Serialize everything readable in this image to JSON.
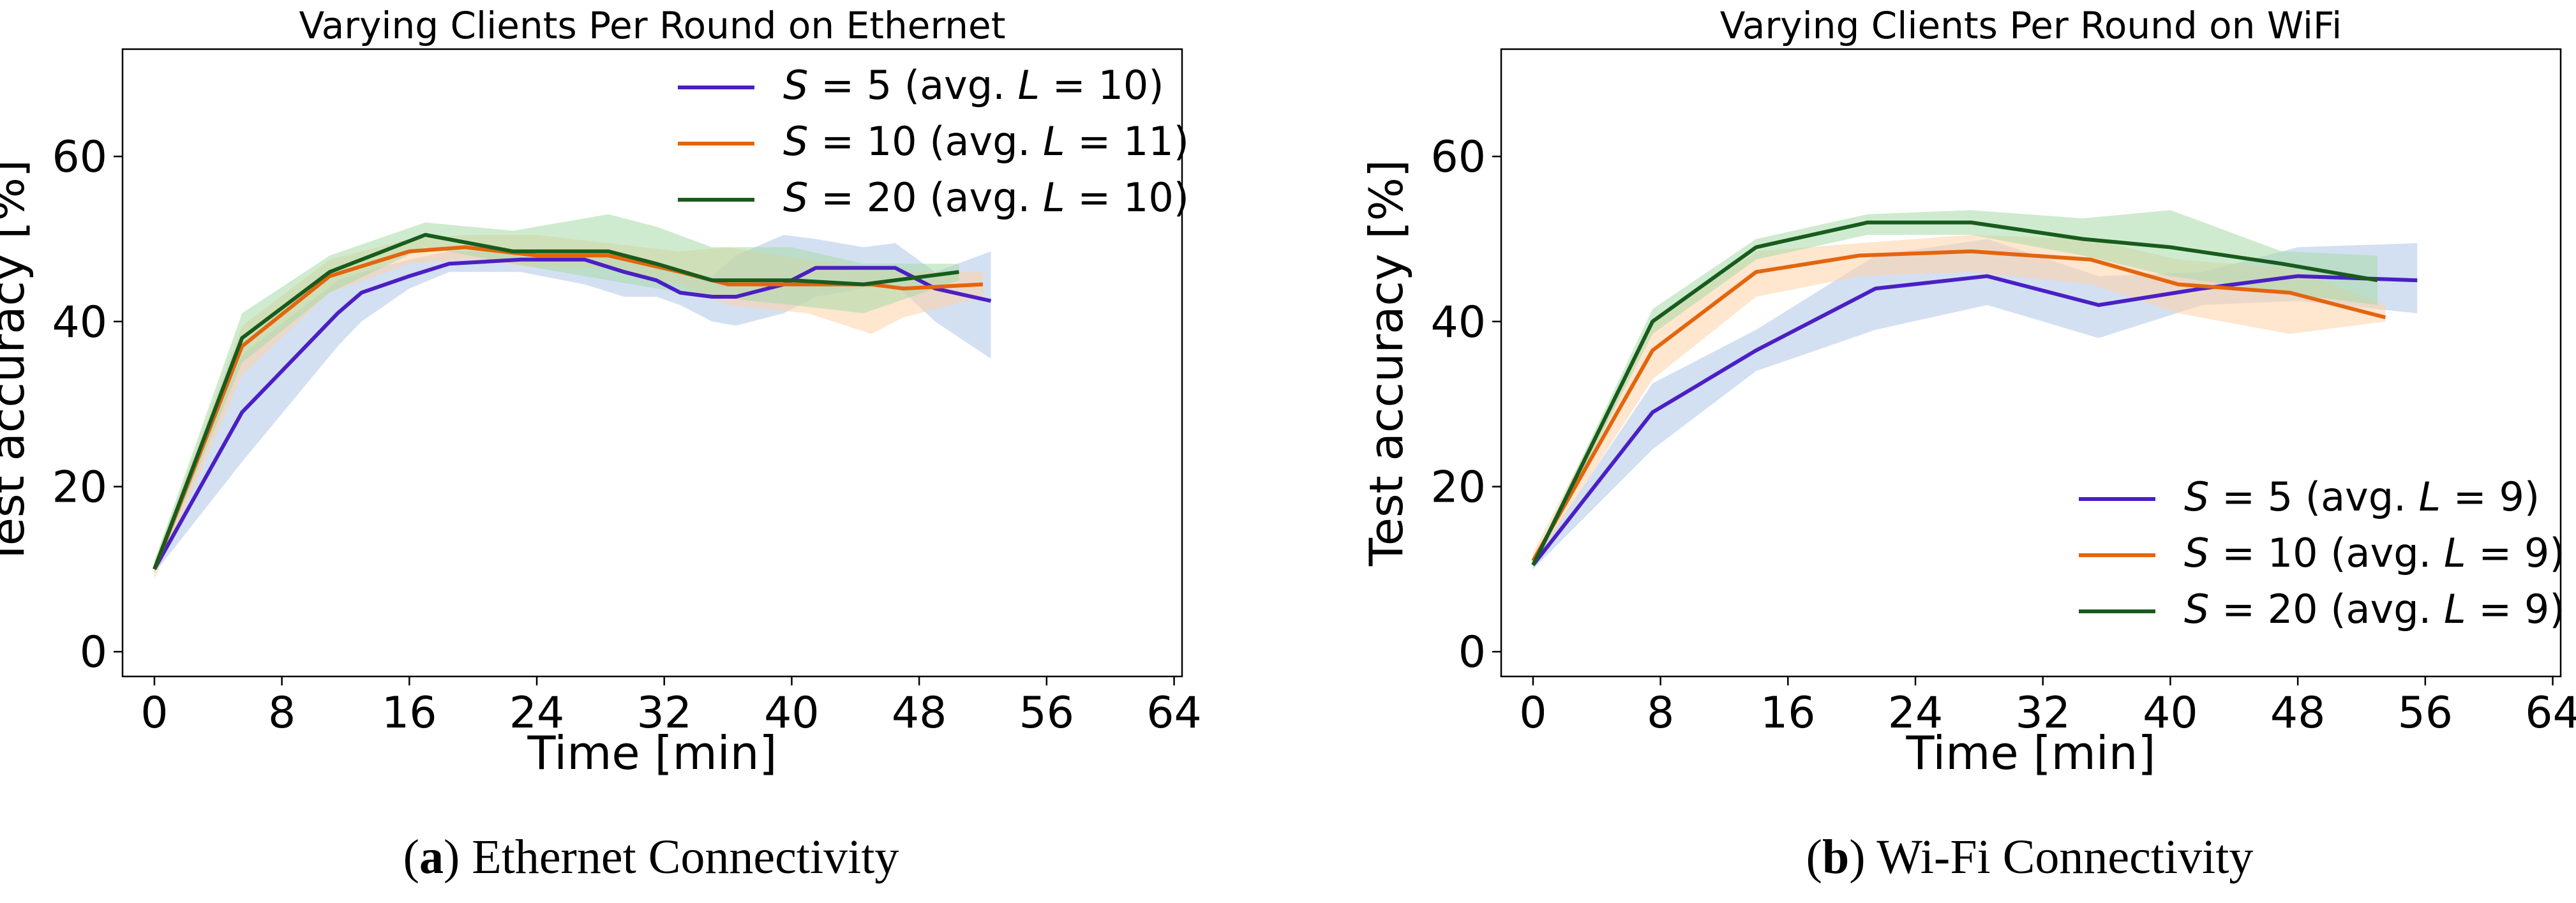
{
  "chart_data": [
    {
      "type": "line",
      "title": "Varying Clients Per Round on Ethernet",
      "xlabel": "Time [min]",
      "ylabel": "Test accuracy [%]",
      "xlim": [
        -2,
        64.5
      ],
      "ylim": [
        -3,
        73
      ],
      "xticks": [
        0,
        8,
        16,
        24,
        32,
        40,
        48,
        56,
        64
      ],
      "yticks": [
        0,
        20,
        40,
        60
      ],
      "legend_position": "top-right",
      "caption_label": "a",
      "caption_text": " Ethernet Connectivity",
      "series": [
        {
          "name": "S = 5 (avg. L = 10)",
          "name_parts": [
            "S",
            " = 5 (avg. ",
            "L",
            " = 10)"
          ],
          "color": "#4b1fc4",
          "band_color": "#aec7e8",
          "x": [
            0,
            5.5,
            11.5,
            13,
            16,
            18.5,
            23,
            27,
            29.5,
            31.5,
            33,
            35,
            36.5,
            39.5,
            41.5,
            44.5,
            46.5,
            49,
            52.5
          ],
          "y": [
            10,
            29,
            41,
            43.5,
            45.5,
            47,
            47.5,
            47.5,
            46,
            45,
            43.5,
            43,
            43,
            44.5,
            46.5,
            46.5,
            46.5,
            44,
            42.5
          ],
          "lower": [
            9.5,
            23,
            37,
            40,
            44,
            46,
            46,
            44.5,
            43,
            43,
            42,
            40,
            39.5,
            41,
            43,
            44,
            44.5,
            40,
            35.5
          ],
          "upper": [
            10.5,
            36,
            45,
            46,
            47.5,
            48.5,
            48.5,
            48.5,
            48,
            47,
            46,
            45.5,
            48,
            50.5,
            50,
            49,
            49.5,
            46,
            48.5
          ]
        },
        {
          "name": "S = 10 (avg. L = 11)",
          "name_parts": [
            "S",
            " = 10 (avg. ",
            "L",
            " = 11)"
          ],
          "color": "#e3650e",
          "band_color": "#ffd2a8",
          "x": [
            0,
            5.5,
            11,
            16,
            19.5,
            24,
            28.5,
            33,
            36,
            41,
            45,
            47,
            52
          ],
          "y": [
            10,
            37,
            45.5,
            48.5,
            49,
            48,
            48,
            46,
            44.5,
            44.5,
            44.5,
            44,
            44.5
          ],
          "lower": [
            8.8,
            33.5,
            43.5,
            47,
            47.5,
            46.5,
            46.5,
            44.5,
            42,
            41,
            38.5,
            40.5,
            43
          ],
          "upper": [
            11,
            39.5,
            47.5,
            50,
            50.5,
            50.5,
            49.5,
            48.5,
            49,
            47.5,
            46.5,
            46,
            46
          ]
        },
        {
          "name": "S = 20 (avg. L = 10)",
          "name_parts": [
            "S",
            " = 20 (avg. ",
            "L",
            " = 10)"
          ],
          "color": "#185c1d",
          "band_color": "#a8dba8",
          "x": [
            0,
            5.5,
            11,
            17,
            22.5,
            28.5,
            31.5,
            35,
            40,
            44.5,
            50.5
          ],
          "y": [
            10,
            38,
            46,
            50.5,
            48.5,
            48.5,
            47,
            45,
            45,
            44.5,
            46
          ],
          "lower": [
            9.5,
            35,
            43.5,
            49,
            47,
            45,
            44,
            43,
            42,
            41,
            45
          ],
          "upper": [
            11,
            41,
            48,
            52,
            51,
            53,
            51.5,
            49,
            49,
            47,
            47
          ]
        }
      ]
    },
    {
      "type": "line",
      "title": "Varying Clients Per Round on WiFi",
      "xlabel": "Time [min]",
      "ylabel": "Test accuracy [%]",
      "xlim": [
        -2,
        64.5
      ],
      "ylim": [
        -3,
        73
      ],
      "xticks": [
        0,
        8,
        16,
        24,
        32,
        40,
        48,
        56,
        64
      ],
      "yticks": [
        0,
        20,
        40,
        60
      ],
      "legend_position": "bottom-right",
      "caption_label": "b",
      "caption_text": " Wi-Fi Connectivity",
      "series": [
        {
          "name": "S = 5 (avg. L = 9)",
          "name_parts": [
            "S",
            " = 5 (avg. ",
            "L",
            " = 9)"
          ],
          "color": "#4b1fc4",
          "band_color": "#aec7e8",
          "x": [
            0,
            7.5,
            14,
            21.5,
            28.5,
            35.5,
            42,
            48,
            55.5
          ],
          "y": [
            10.5,
            29,
            36.5,
            44,
            45.5,
            42,
            44,
            45.5,
            45
          ],
          "lower": [
            10,
            24.5,
            34,
            39,
            42,
            38,
            42,
            42.5,
            41
          ],
          "upper": [
            11,
            32.5,
            39,
            48,
            50,
            45.5,
            46,
            49,
            49.5
          ]
        },
        {
          "name": "S = 10 (avg. L = 9)",
          "name_parts": [
            "S",
            " = 10 (avg. ",
            "L",
            " = 9)"
          ],
          "color": "#e3650e",
          "band_color": "#ffd2a8",
          "x": [
            0,
            7.5,
            14,
            20.5,
            27.5,
            35,
            40.5,
            47.5,
            53.5
          ],
          "y": [
            11,
            36.5,
            46,
            48,
            48.5,
            47.5,
            44.5,
            43.5,
            40.5
          ],
          "lower": [
            10.5,
            33,
            43,
            45.5,
            46,
            44.5,
            41,
            38.5,
            40
          ],
          "upper": [
            12,
            40,
            48.5,
            49.5,
            50.5,
            50,
            47.5,
            46.5,
            42
          ]
        },
        {
          "name": "S = 20 (avg. L = 9)",
          "name_parts": [
            "S",
            " = 20 (avg. ",
            "L",
            " = 9)"
          ],
          "color": "#185c1d",
          "band_color": "#a8dba8",
          "x": [
            0,
            7.5,
            14,
            21,
            27.5,
            34.5,
            40,
            47,
            53
          ],
          "y": [
            10.5,
            40,
            49,
            52,
            52,
            50,
            49,
            47,
            45
          ],
          "lower": [
            10,
            38.5,
            47.5,
            50.5,
            50.5,
            48,
            45.5,
            43.5,
            42
          ],
          "upper": [
            11,
            41.5,
            50,
            53,
            53.5,
            52.5,
            53.5,
            48.5,
            48
          ]
        }
      ]
    }
  ]
}
